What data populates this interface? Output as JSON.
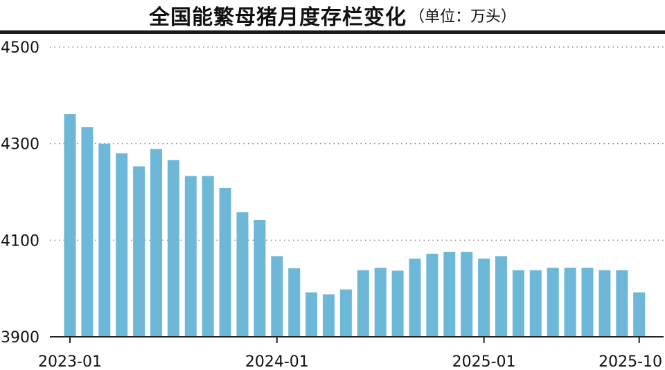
{
  "header": {
    "title": "全国能繁母猪月度存栏变化",
    "subtitle": "（单位：万头）"
  },
  "chart_data": {
    "type": "bar",
    "title": "全国能繁母猪月度存栏变化",
    "unit": "万头",
    "categories": [
      "2023-01",
      "2023-02",
      "2023-03",
      "2023-04",
      "2023-05",
      "2023-06",
      "2023-07",
      "2023-08",
      "2023-09",
      "2023-10",
      "2023-11",
      "2023-12",
      "2024-01",
      "2024-02",
      "2024-03",
      "2024-04",
      "2024-05",
      "2024-06",
      "2024-07",
      "2024-08",
      "2024-09",
      "2024-10",
      "2024-11",
      "2024-12",
      "2025-01",
      "2025-02",
      "2025-03",
      "2025-04",
      "2025-05",
      "2025-06",
      "2025-07",
      "2025-08",
      "2025-09",
      "2025-10"
    ],
    "values": [
      4361,
      4334,
      4300,
      4280,
      4253,
      4289,
      4266,
      4233,
      4233,
      4208,
      4158,
      4142,
      4067,
      4042,
      3992,
      3988,
      3998,
      4038,
      4043,
      4037,
      4062,
      4072,
      4076,
      4076,
      4062,
      4067,
      4038,
      4038,
      4043,
      4043,
      4043,
      4038,
      4038,
      3992
    ],
    "ylim": [
      3900,
      4500
    ],
    "yticks": [
      "3900",
      "4100",
      "4300",
      "4500"
    ],
    "xtick_labels": [
      "2023-01",
      "2024-01",
      "2025-01",
      "2025-10"
    ],
    "bar_color": "#6db8d8",
    "grid": "horizontal dotted"
  }
}
